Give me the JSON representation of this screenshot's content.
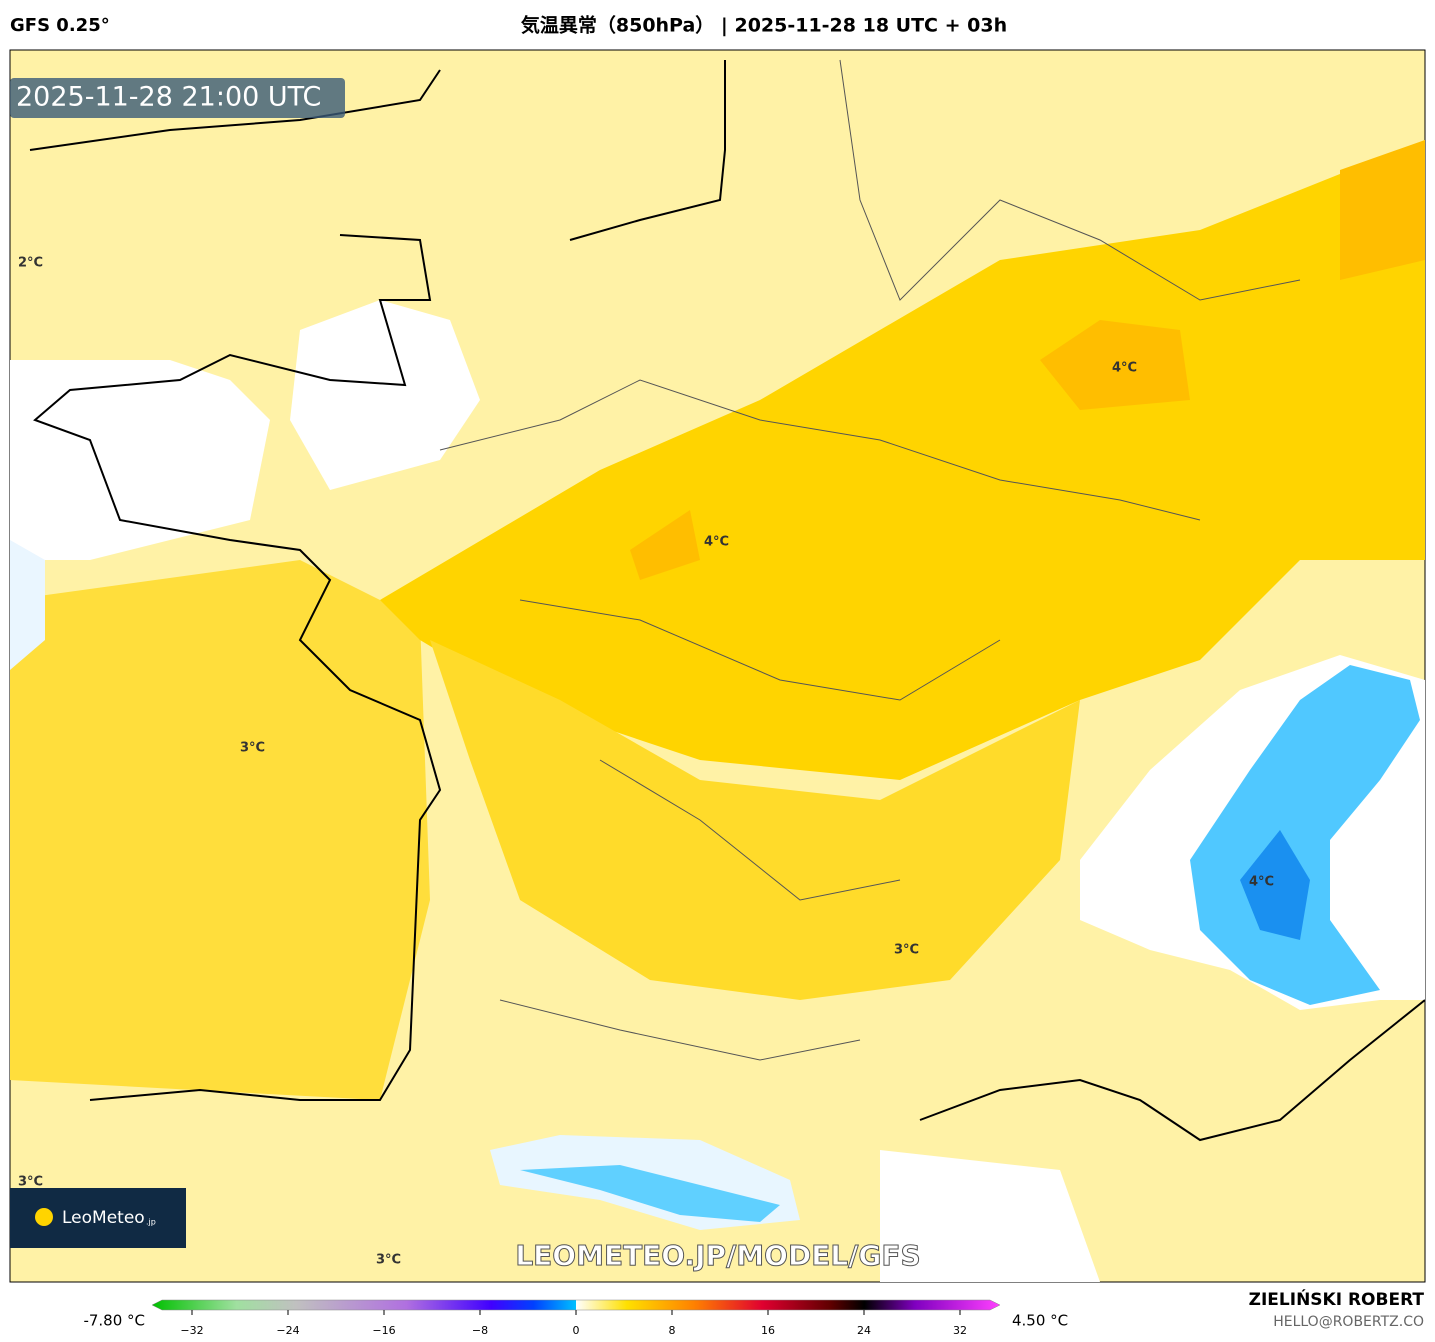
{
  "header": {
    "model": "GFS 0.25°",
    "title": "気温異常（850hPa） | 2025-11-28 18 UTC + 03h"
  },
  "map": {
    "timestamp": "2025-11-28 21:00 UTC",
    "labels": [
      "2°C",
      "4°C",
      "4°C",
      "3°C",
      "4°C",
      "3°C",
      "3°C",
      "3°C"
    ],
    "watermark": "LEOMETEO.JP/MODEL/GFS",
    "logo": {
      "name": "LeoMeteo",
      "suffix": ".jp"
    }
  },
  "colorbar": {
    "min_label": "-7.80 °C",
    "max_label": "4.50 °C",
    "ticks": [
      {
        "value": -32,
        "label": "−32"
      },
      {
        "value": -24,
        "label": "−24"
      },
      {
        "value": -16,
        "label": "−16"
      },
      {
        "value": -8,
        "label": "−8"
      },
      0,
      8,
      16,
      24,
      32
    ]
  },
  "credits": {
    "author": "ZIELIŃSKI ROBERT",
    "email": "HELLO@ROBERTZ.CO"
  }
}
